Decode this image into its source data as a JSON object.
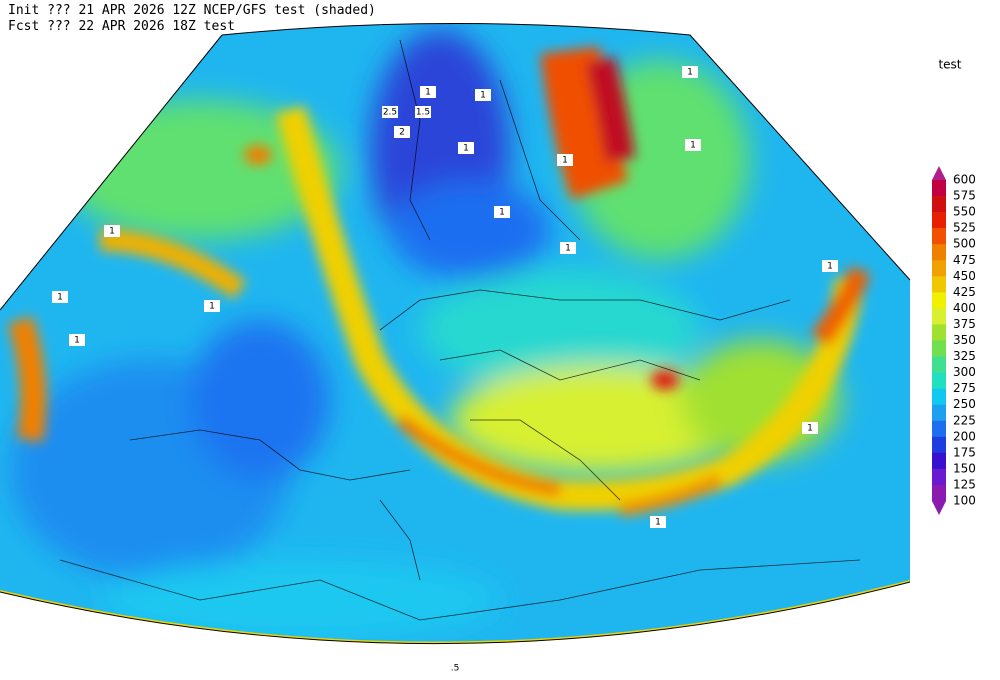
{
  "header": {
    "init": "Init  ??? 21 APR 2026 12Z  NCEP/GFS test (shaded)",
    "fcst": "Fcst ??? 22 APR 2026 18Z  test"
  },
  "legend": {
    "title": "test",
    "labels": [
      600,
      575,
      550,
      525,
      500,
      475,
      450,
      425,
      400,
      375,
      350,
      325,
      300,
      275,
      250,
      225,
      200,
      175,
      150,
      125,
      100
    ]
  },
  "contour_labels": [
    "2.5",
    "1.5",
    "1",
    "2",
    "1",
    "1",
    "1",
    "1",
    "1",
    "1",
    "1",
    "1",
    "1",
    "1",
    "1",
    "1",
    "1",
    "1",
    ".5"
  ]
}
